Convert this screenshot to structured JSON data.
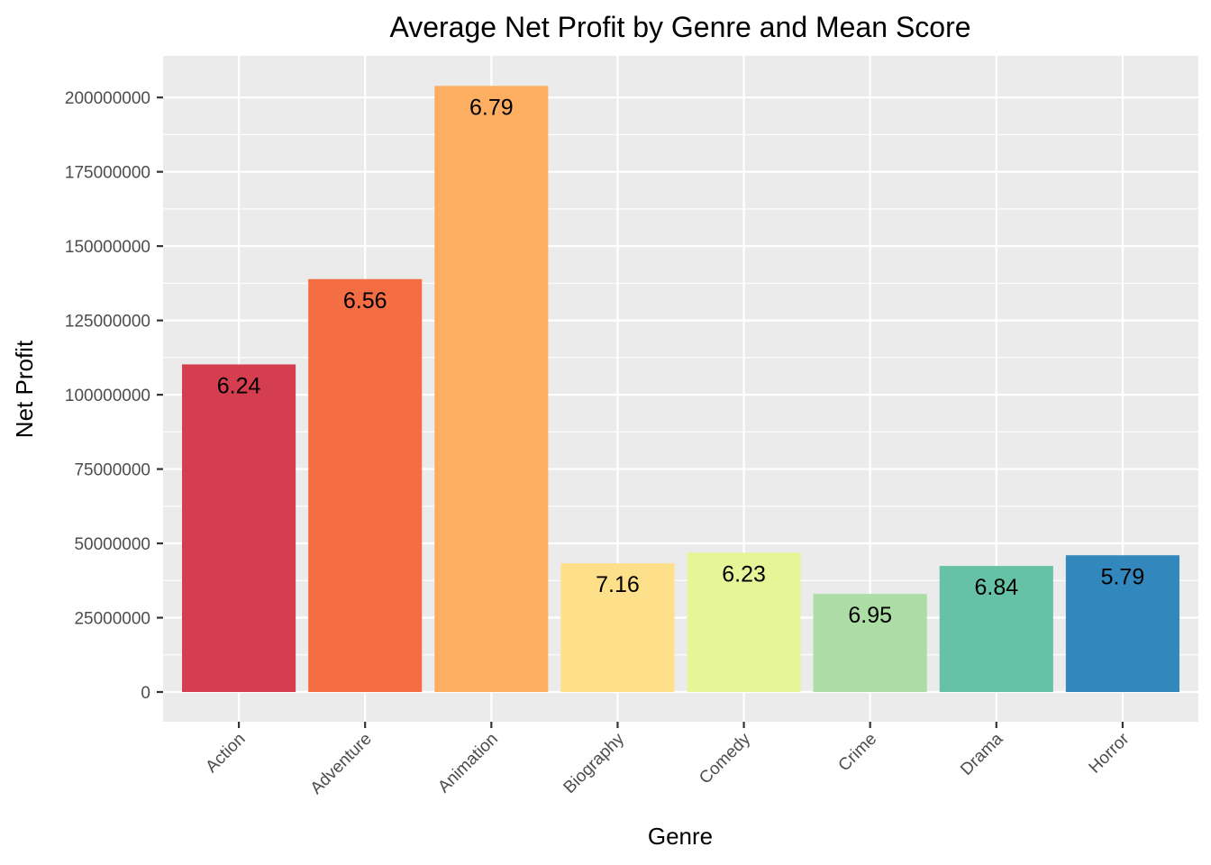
{
  "chart_data": {
    "type": "bar",
    "title": "Average Net Profit by Genre and Mean Score",
    "xlabel": "Genre",
    "ylabel": "Net Profit",
    "categories": [
      "Action",
      "Adventure",
      "Animation",
      "Biography",
      "Comedy",
      "Crime",
      "Drama",
      "Horror"
    ],
    "values": [
      110200000,
      138900000,
      203900000,
      43300000,
      46900000,
      33000000,
      42400000,
      46000000
    ],
    "bar_labels": [
      "6.24",
      "6.56",
      "6.79",
      "7.16",
      "6.23",
      "6.95",
      "6.84",
      "5.79"
    ],
    "colors": [
      "#D53E4F",
      "#F46D43",
      "#FDAE61",
      "#FEE08B",
      "#E6F598",
      "#ABDDA4",
      "#66C2A5",
      "#3288BD"
    ],
    "y_ticks": [
      0,
      25000000,
      50000000,
      75000000,
      100000000,
      125000000,
      150000000,
      175000000,
      200000000
    ],
    "y_tick_labels": [
      "0",
      "25000000",
      "50000000",
      "75000000",
      "100000000",
      "125000000",
      "150000000",
      "175000000",
      "200000000"
    ],
    "ylim": [
      -10000000,
      214000000
    ],
    "grid": true,
    "legend": "none",
    "panel_background": "#EBEBEB"
  }
}
